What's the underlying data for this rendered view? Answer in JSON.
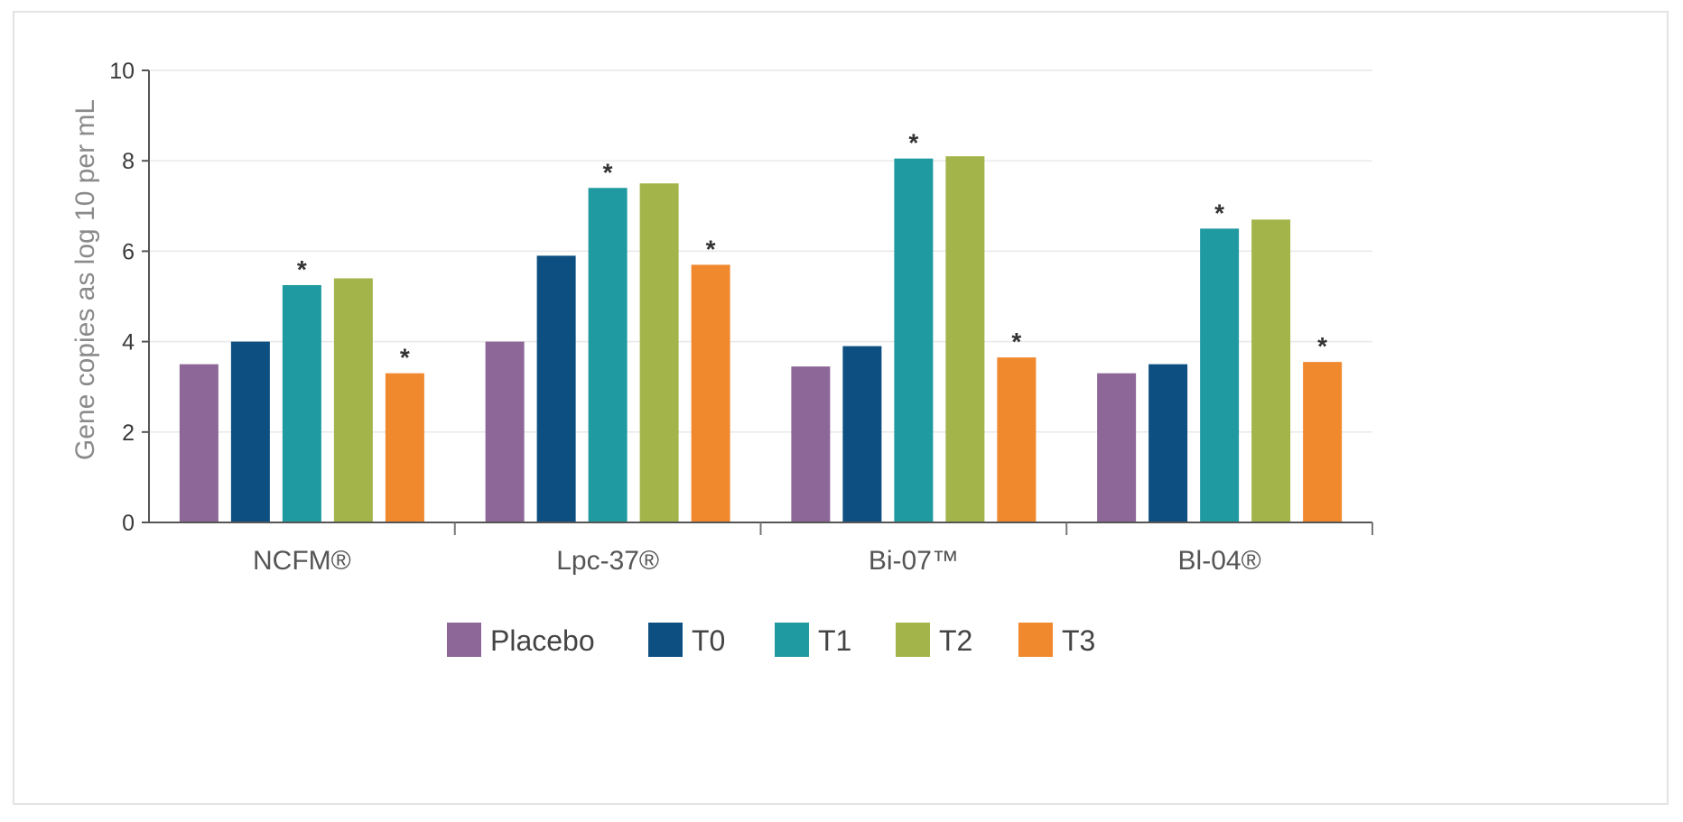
{
  "chart_data": {
    "type": "bar",
    "ylabel": "Gene copies as log 10 per mL",
    "xlabel": "",
    "ylim": [
      0,
      10
    ],
    "yticks": [
      0,
      2,
      4,
      6,
      8,
      10
    ],
    "grid": true,
    "legend_position": "bottom",
    "categories": [
      "NCFM®",
      "Lpc-37®",
      "Bi-07™",
      "Bl-04®"
    ],
    "series": [
      {
        "name": "Placebo",
        "color": "#8c6797",
        "values": [
          3.5,
          4.0,
          3.45,
          3.3
        ],
        "significant": [
          false,
          false,
          false,
          false
        ]
      },
      {
        "name": "T0",
        "color": "#0d4f80",
        "values": [
          4.0,
          5.9,
          3.9,
          3.5
        ],
        "significant": [
          false,
          false,
          false,
          false
        ]
      },
      {
        "name": "T1",
        "color": "#1e9aa0",
        "values": [
          5.25,
          7.4,
          8.05,
          6.5
        ],
        "significant": [
          true,
          true,
          true,
          true
        ]
      },
      {
        "name": "T2",
        "color": "#a3b54a",
        "values": [
          5.4,
          7.5,
          8.1,
          6.7
        ],
        "significant": [
          false,
          false,
          false,
          false
        ]
      },
      {
        "name": "T3",
        "color": "#f0892e",
        "values": [
          3.3,
          5.7,
          3.65,
          3.55
        ],
        "significant": [
          true,
          true,
          true,
          true
        ]
      }
    ],
    "significance_marker": "*"
  }
}
